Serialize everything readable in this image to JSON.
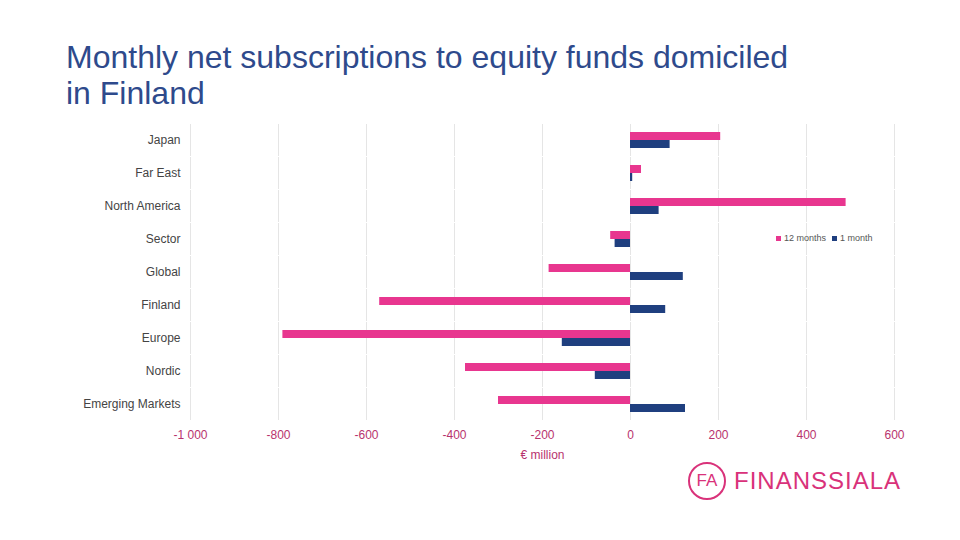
{
  "chart_data": {
    "type": "bar",
    "title": "Monthly net subscriptions to equity funds domiciled in Finland",
    "x_label": "€ million",
    "orientation": "horizontal",
    "categories": [
      "Japan",
      "Far East",
      "North America",
      "Sector",
      "Global",
      "Finland",
      "Europe",
      "Nordic",
      "Emerging Markets"
    ],
    "series": [
      {
        "name": "12 months",
        "color": "#e8368f",
        "values": [
          205,
          25,
          490,
          -45,
          -185,
          -570,
          -790,
          -375,
          -300
        ]
      },
      {
        "name": "1 month",
        "color": "#1f3f7f",
        "values": [
          90,
          5,
          65,
          -35,
          120,
          80,
          -155,
          -80,
          125
        ]
      }
    ],
    "xlim": [
      -1000,
      600
    ],
    "xticks": [
      {
        "value": -1000,
        "label": "-1 000"
      },
      -800,
      -600,
      -400,
      -200,
      0,
      200,
      400,
      600
    ],
    "grid": true,
    "legend": "right",
    "annotations": [
      "FA",
      "FINANSSIALA"
    ]
  }
}
